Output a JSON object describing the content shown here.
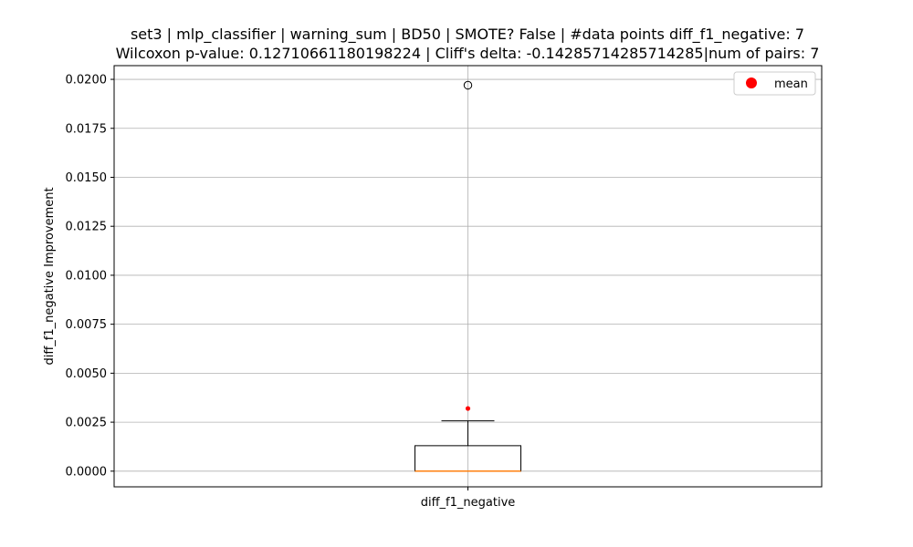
{
  "chart_data": {
    "type": "box",
    "title_line1": "set3 | mlp_classifier | warning_sum | BD50 | SMOTE? False | #data points diff_f1_negative: 7",
    "title_line2": "Wilcoxon p-value: 0.12710661180198224 | Cliff's delta: -0.14285714285714285|num of pairs: 7",
    "xlabel": "",
    "ylabel": "diff_f1_negative Improvement",
    "categories": [
      "diff_f1_negative"
    ],
    "ylim": [
      -0.0008,
      0.0207
    ],
    "yticks": [
      0.0,
      0.0025,
      0.005,
      0.0075,
      0.01,
      0.0125,
      0.015,
      0.0175,
      0.02
    ],
    "ytick_labels": [
      "0.0000",
      "0.0025",
      "0.0050",
      "0.0075",
      "0.0100",
      "0.0125",
      "0.0150",
      "0.0175",
      "0.0200"
    ],
    "grid": true,
    "box": {
      "whisker_low": 0.0,
      "q1": 0.0,
      "median": 0.0,
      "q3": 0.0013,
      "whisker_high": 0.00257,
      "mean": 0.0032,
      "outliers": [
        0.0197
      ]
    },
    "legend": {
      "position": "top-right",
      "entries": [
        {
          "label": "mean",
          "color": "#ff0000"
        }
      ]
    },
    "colors": {
      "box": "#000000",
      "median": "#ff7f0e",
      "mean": "#ff0000",
      "grid": "#b0b0b0"
    }
  }
}
